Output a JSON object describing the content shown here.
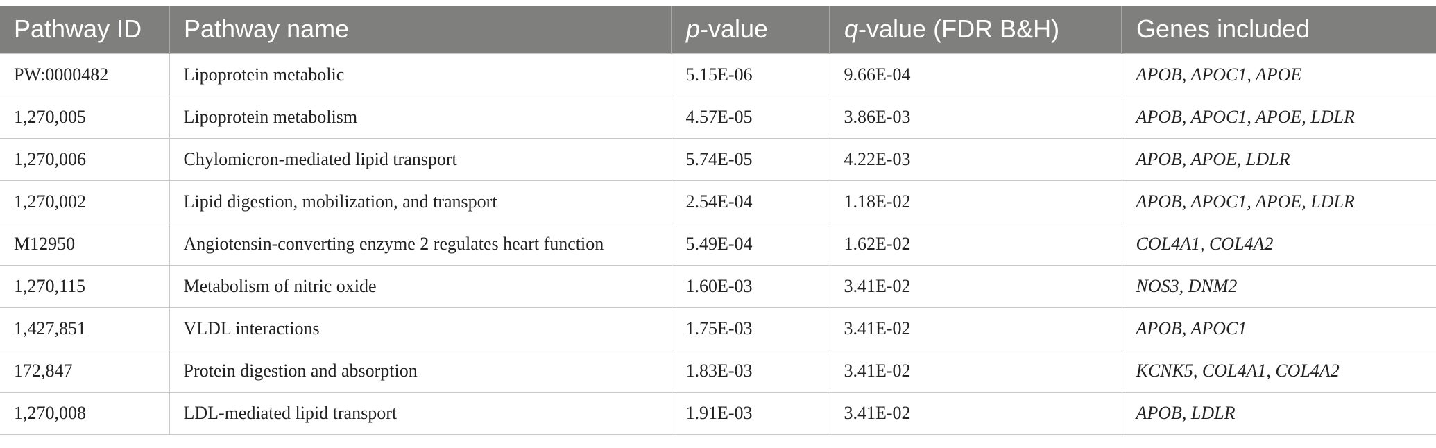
{
  "table": {
    "header": [
      "Pathway ID",
      "Pathway name",
      [
        "p",
        "-value"
      ],
      [
        "q",
        "-value (FDR B&H)"
      ],
      "Genes included"
    ],
    "rows": [
      [
        "PW:0000482",
        "Lipoprotein metabolic",
        "5.15E-06",
        "9.66E-04",
        "APOB, APOC1, APOE"
      ],
      [
        "1,270,005",
        "Lipoprotein metabolism",
        "4.57E-05",
        "3.86E-03",
        "APOB, APOC1, APOE, LDLR"
      ],
      [
        "1,270,006",
        "Chylomicron-mediated lipid transport",
        "5.74E-05",
        "4.22E-03",
        "APOB, APOE, LDLR"
      ],
      [
        "1,270,002",
        "Lipid digestion, mobilization, and transport",
        "2.54E-04",
        "1.18E-02",
        "APOB, APOC1, APOE, LDLR"
      ],
      [
        "M12950",
        "Angiotensin-converting enzyme 2 regulates heart function",
        "5.49E-04",
        "1.62E-02",
        "COL4A1, COL4A2"
      ],
      [
        "1,270,115",
        "Metabolism of nitric oxide",
        "1.60E-03",
        "3.41E-02",
        "NOS3, DNM2"
      ],
      [
        "1,427,851",
        "VLDL interactions",
        "1.75E-03",
        "3.41E-02",
        "APOB, APOC1"
      ],
      [
        "172,847",
        "Protein digestion and absorption",
        "1.83E-03",
        "3.41E-02",
        "KCNK5, COL4A1, COL4A2"
      ],
      [
        "1,270,008",
        "LDL-mediated lipid transport",
        "1.91E-03",
        "3.41E-02",
        "APOB, LDLR"
      ]
    ]
  }
}
